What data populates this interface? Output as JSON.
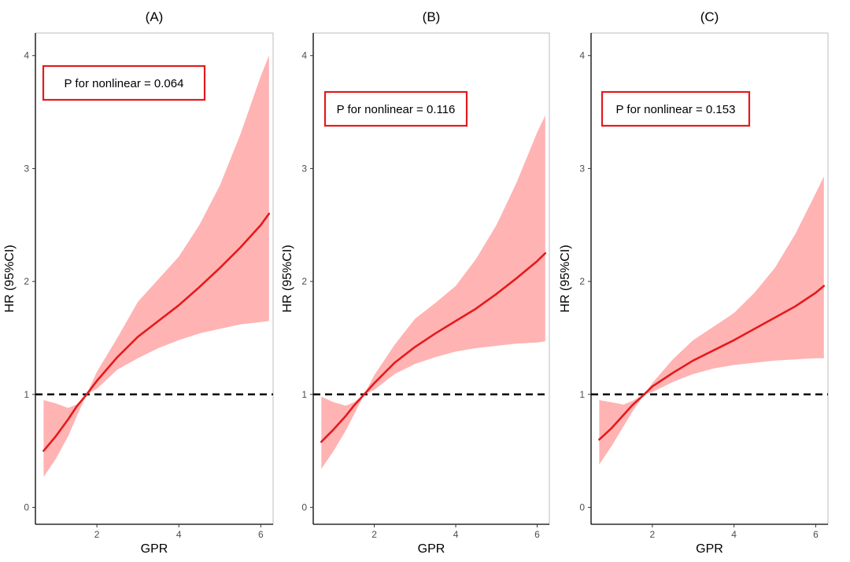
{
  "colors": {
    "band": "#ffb3b3",
    "line": "#e41a1c",
    "reference": "#000000",
    "box_border": "#e41a1c",
    "frame": "#bdbdbd"
  },
  "chart_data": [
    {
      "type": "line",
      "title": "(A)",
      "xlabel": "GPR",
      "ylabel": "HR (95%CI)",
      "xlim": [
        0.5,
        6.3
      ],
      "ylim": [
        -0.15,
        4.2
      ],
      "xticks": [
        2,
        4,
        6
      ],
      "yticks": [
        0,
        1,
        2,
        3,
        4
      ],
      "reference_line": 1,
      "annotation": "P for nonlinear = 0.064",
      "series": [
        {
          "x": [
            0.7,
            1.0,
            1.3,
            1.5,
            1.75,
            2.0,
            2.5,
            3.0,
            3.5,
            4.0,
            4.5,
            5.0,
            5.5,
            6.0,
            6.2
          ],
          "y": [
            0.5,
            0.63,
            0.78,
            0.89,
            1.0,
            1.12,
            1.33,
            1.51,
            1.65,
            1.79,
            1.95,
            2.12,
            2.3,
            2.5,
            2.6
          ],
          "lower": [
            0.27,
            0.43,
            0.63,
            0.8,
            1.0,
            1.05,
            1.22,
            1.32,
            1.41,
            1.48,
            1.54,
            1.58,
            1.62,
            1.64,
            1.65
          ],
          "upper": [
            0.95,
            0.92,
            0.88,
            0.91,
            1.0,
            1.2,
            1.5,
            1.82,
            2.02,
            2.22,
            2.5,
            2.85,
            3.3,
            3.82,
            4.0
          ]
        }
      ]
    },
    {
      "type": "line",
      "title": "(B)",
      "xlabel": "GPR",
      "ylabel": "HR (95%CI)",
      "xlim": [
        0.5,
        6.3
      ],
      "ylim": [
        -0.15,
        4.2
      ],
      "xticks": [
        2,
        4,
        6
      ],
      "yticks": [
        0,
        1,
        2,
        3,
        4
      ],
      "reference_line": 1,
      "annotation": "P for nonlinear = 0.116",
      "series": [
        {
          "x": [
            0.7,
            1.0,
            1.3,
            1.5,
            1.75,
            2.0,
            2.5,
            3.0,
            3.5,
            4.0,
            4.5,
            5.0,
            5.5,
            6.0,
            6.2
          ],
          "y": [
            0.58,
            0.69,
            0.81,
            0.9,
            1.0,
            1.1,
            1.28,
            1.42,
            1.54,
            1.65,
            1.76,
            1.89,
            2.03,
            2.18,
            2.25
          ],
          "lower": [
            0.34,
            0.5,
            0.68,
            0.82,
            1.0,
            1.04,
            1.18,
            1.27,
            1.33,
            1.38,
            1.41,
            1.43,
            1.45,
            1.46,
            1.47
          ],
          "upper": [
            0.98,
            0.93,
            0.9,
            0.93,
            1.0,
            1.17,
            1.44,
            1.67,
            1.81,
            1.96,
            2.2,
            2.5,
            2.88,
            3.32,
            3.47
          ]
        }
      ]
    },
    {
      "type": "line",
      "title": "(C)",
      "xlabel": "GPR",
      "ylabel": "HR (95%CI)",
      "xlim": [
        0.5,
        6.3
      ],
      "ylim": [
        -0.15,
        4.2
      ],
      "xticks": [
        2,
        4,
        6
      ],
      "yticks": [
        0,
        1,
        2,
        3,
        4
      ],
      "reference_line": 1,
      "annotation": "P for nonlinear = 0.153",
      "series": [
        {
          "x": [
            0.7,
            1.0,
            1.3,
            1.5,
            1.8,
            2.0,
            2.5,
            3.0,
            3.5,
            4.0,
            4.5,
            5.0,
            5.5,
            6.0,
            6.2
          ],
          "y": [
            0.6,
            0.7,
            0.82,
            0.9,
            1.0,
            1.07,
            1.19,
            1.3,
            1.39,
            1.48,
            1.58,
            1.68,
            1.78,
            1.9,
            1.96
          ],
          "lower": [
            0.38,
            0.54,
            0.72,
            0.84,
            1.0,
            1.02,
            1.11,
            1.18,
            1.23,
            1.26,
            1.28,
            1.3,
            1.31,
            1.32,
            1.32
          ],
          "upper": [
            0.95,
            0.93,
            0.91,
            0.94,
            1.0,
            1.1,
            1.31,
            1.48,
            1.6,
            1.72,
            1.9,
            2.12,
            2.42,
            2.78,
            2.93
          ]
        }
      ]
    }
  ]
}
